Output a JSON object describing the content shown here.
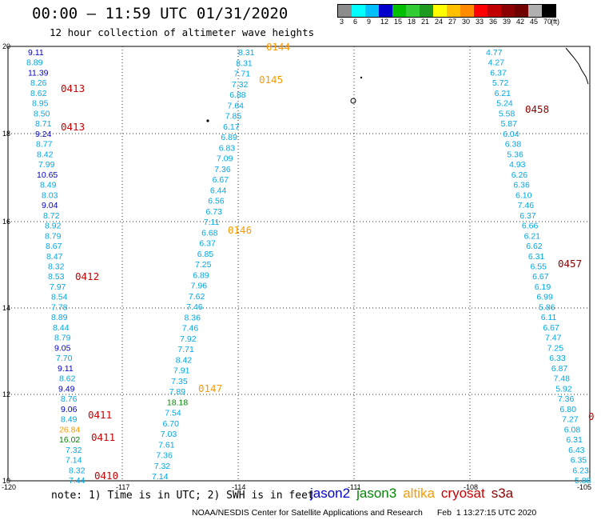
{
  "header": {
    "title": "00:00 – 11:59 UTC 01/31/2020",
    "subtitle": "12 hour collection of altimeter wave heights"
  },
  "colorbar": {
    "colors": [
      "#8c8c8c",
      "#00ffff",
      "#00bfff",
      "#0000cd",
      "#00c000",
      "#32cd32",
      "#1e9a1e",
      "#ffff00",
      "#ffc000",
      "#ff8c00",
      "#ff0000",
      "#c00000",
      "#8b0000",
      "#700000",
      "#b0b0b0",
      "#000000"
    ],
    "labels": [
      "3",
      "6",
      "9",
      "12",
      "15",
      "18",
      "21",
      "24",
      "27",
      "30",
      "33",
      "36",
      "39",
      "42",
      "45",
      "70",
      "(ft)"
    ]
  },
  "axes": {
    "y_labels": [
      "20",
      "18",
      "16",
      "14",
      "12",
      "10"
    ],
    "x_labels": [
      "-120",
      "-117",
      "-114",
      "-111",
      "-108",
      "-105"
    ]
  },
  "colors": {
    "jason2": "#0000cc",
    "jason3": "#008800",
    "altika": "#ff9900",
    "cryosat": "#cc0000",
    "s3a": "#8b0000",
    "default": "#00a8e8"
  },
  "tracks": [
    {
      "sat": "jason2",
      "v": [
        [
          "9.11",
          "jason2"
        ],
        [
          "8.89",
          "default"
        ],
        [
          "11.39",
          "jason2"
        ],
        [
          "8.26",
          "default"
        ],
        [
          "8.62",
          "default"
        ],
        [
          "8.95",
          "default"
        ],
        [
          "8.50",
          "default"
        ],
        [
          "8.71",
          "default"
        ],
        [
          "9.24",
          "jason2"
        ],
        [
          "8.77",
          "default"
        ],
        [
          "8.42",
          "default"
        ],
        [
          "7.99",
          "default"
        ],
        [
          "10.65",
          "jason2"
        ],
        [
          "8.49",
          "default"
        ],
        [
          "8.03",
          "default"
        ],
        [
          "9.04",
          "jason2"
        ],
        [
          "8.72",
          "default"
        ],
        [
          "8.92",
          "default"
        ],
        [
          "8.79",
          "default"
        ],
        [
          "8.67",
          "default"
        ],
        [
          "8.47",
          "default"
        ],
        [
          "8.32",
          "default"
        ],
        [
          "8.53",
          "default"
        ],
        [
          "7.97",
          "default"
        ],
        [
          "8.54",
          "default"
        ],
        [
          "7.78",
          "default"
        ],
        [
          "8.89",
          "default"
        ],
        [
          "8.44",
          "default"
        ],
        [
          "8.79",
          "default"
        ],
        [
          "9.05",
          "jason2"
        ],
        [
          "7.70",
          "default"
        ],
        [
          "9.11",
          "jason2"
        ],
        [
          "8.62",
          "default"
        ],
        [
          "9.49",
          "jason2"
        ],
        [
          "8.76",
          "default"
        ],
        [
          "9.06",
          "jason2"
        ],
        [
          "8.49",
          "default"
        ],
        [
          "26.84",
          "altika"
        ],
        [
          "16.02",
          "jason3"
        ],
        [
          "7.32",
          "default"
        ],
        [
          "7.14",
          "default"
        ],
        [
          "8.32",
          "default"
        ],
        [
          "7.44",
          "default"
        ]
      ]
    },
    {
      "sat": "track2",
      "v": [
        [
          "8.31",
          "default"
        ],
        [
          "8.31",
          "default"
        ],
        [
          "7.71",
          "default"
        ],
        [
          "7.32",
          "default"
        ],
        [
          "6.88",
          "default"
        ],
        [
          "7.64",
          "default"
        ],
        [
          "7.85",
          "default"
        ],
        [
          "6.17",
          "default"
        ],
        [
          "6.89",
          "default"
        ],
        [
          "6.83",
          "default"
        ],
        [
          "7.09",
          "default"
        ],
        [
          "7.36",
          "default"
        ],
        [
          "6.67",
          "default"
        ],
        [
          "6.44",
          "default"
        ],
        [
          "6.56",
          "default"
        ],
        [
          "6.73",
          "default"
        ],
        [
          "7.11",
          "default"
        ],
        [
          "6.68",
          "default"
        ],
        [
          "6.37",
          "default"
        ],
        [
          "6.85",
          "default"
        ],
        [
          "7.25",
          "default"
        ],
        [
          "6.89",
          "default"
        ],
        [
          "7.96",
          "default"
        ],
        [
          "7.62",
          "default"
        ],
        [
          "7.46",
          "default"
        ],
        [
          "8.36",
          "default"
        ],
        [
          "7.46",
          "default"
        ],
        [
          "7.92",
          "default"
        ],
        [
          "7.71",
          "default"
        ],
        [
          "8.42",
          "default"
        ],
        [
          "7.91",
          "default"
        ],
        [
          "7.35",
          "default"
        ],
        [
          "7.89",
          "default"
        ],
        [
          "18.18",
          "jason3"
        ],
        [
          "7.54",
          "default"
        ],
        [
          "6.70",
          "default"
        ],
        [
          "7.03",
          "default"
        ],
        [
          "7.61",
          "default"
        ],
        [
          "7.36",
          "default"
        ],
        [
          "7.32",
          "default"
        ],
        [
          "7.14",
          "default"
        ]
      ]
    },
    {
      "sat": "track3",
      "v": [
        [
          "4.77",
          "default"
        ],
        [
          "4.27",
          "default"
        ],
        [
          "6.37",
          "default"
        ],
        [
          "5.72",
          "default"
        ],
        [
          "6.21",
          "default"
        ],
        [
          "5.24",
          "default"
        ],
        [
          "5.58",
          "default"
        ],
        [
          "5.87",
          "default"
        ],
        [
          "6.04",
          "default"
        ],
        [
          "6.38",
          "default"
        ],
        [
          "5.36",
          "default"
        ],
        [
          "4.93",
          "default"
        ],
        [
          "6.26",
          "default"
        ],
        [
          "6.36",
          "default"
        ],
        [
          "6.10",
          "default"
        ],
        [
          "7.46",
          "default"
        ],
        [
          "6.37",
          "default"
        ],
        [
          "6.66",
          "default"
        ],
        [
          "6.21",
          "default"
        ],
        [
          "6.62",
          "default"
        ],
        [
          "6.31",
          "default"
        ],
        [
          "6.55",
          "default"
        ],
        [
          "6.67",
          "default"
        ],
        [
          "6.19",
          "default"
        ],
        [
          "6.99",
          "default"
        ],
        [
          "5.86",
          "default"
        ],
        [
          "6.11",
          "default"
        ],
        [
          "6.67",
          "default"
        ],
        [
          "7.47",
          "default"
        ],
        [
          "7.25",
          "default"
        ],
        [
          "6.33",
          "default"
        ],
        [
          "6.87",
          "default"
        ],
        [
          "7.48",
          "default"
        ],
        [
          "5.92",
          "default"
        ],
        [
          "7.36",
          "default"
        ],
        [
          "6.80",
          "default"
        ],
        [
          "7.27",
          "default"
        ],
        [
          "6.08",
          "default"
        ],
        [
          "6.31",
          "default"
        ],
        [
          "6.43",
          "default"
        ],
        [
          "6.35",
          "default"
        ],
        [
          "6.23",
          "default"
        ],
        [
          "5.88",
          "default"
        ]
      ]
    }
  ],
  "time_labels": [
    {
      "t": "0144",
      "c": "altika"
    },
    {
      "t": "0413",
      "c": "cryosat"
    },
    {
      "t": "0145",
      "c": "altika"
    },
    {
      "t": "0413",
      "c": "cryosat"
    },
    {
      "t": "0458",
      "c": "s3a"
    },
    {
      "t": "0146",
      "c": "altika"
    },
    {
      "t": "0457",
      "c": "s3a"
    },
    {
      "t": "0412",
      "c": "cryosat"
    },
    {
      "t": "0147",
      "c": "altika"
    },
    {
      "t": "0411",
      "c": "cryosat"
    },
    {
      "t": "0411",
      "c": "cryosat"
    },
    {
      "t": "0410",
      "c": "cryosat"
    },
    {
      "t": "0",
      "c": "cryosat"
    }
  ],
  "footer": {
    "note": "note: 1) Time is in UTC; 2) SWH is in feet",
    "legend": [
      {
        "name": "jason2",
        "c": "jason2"
      },
      {
        "name": "jason3",
        "c": "jason3"
      },
      {
        "name": "altika",
        "c": "altika"
      },
      {
        "name": "cryosat",
        "c": "cryosat"
      },
      {
        "name": "s3a",
        "c": "s3a"
      }
    ],
    "credit": "NOAA/NESDIS Center for Satellite Applications and Research",
    "timestamp": "Feb  1 13:27:15 UTC 2020"
  }
}
